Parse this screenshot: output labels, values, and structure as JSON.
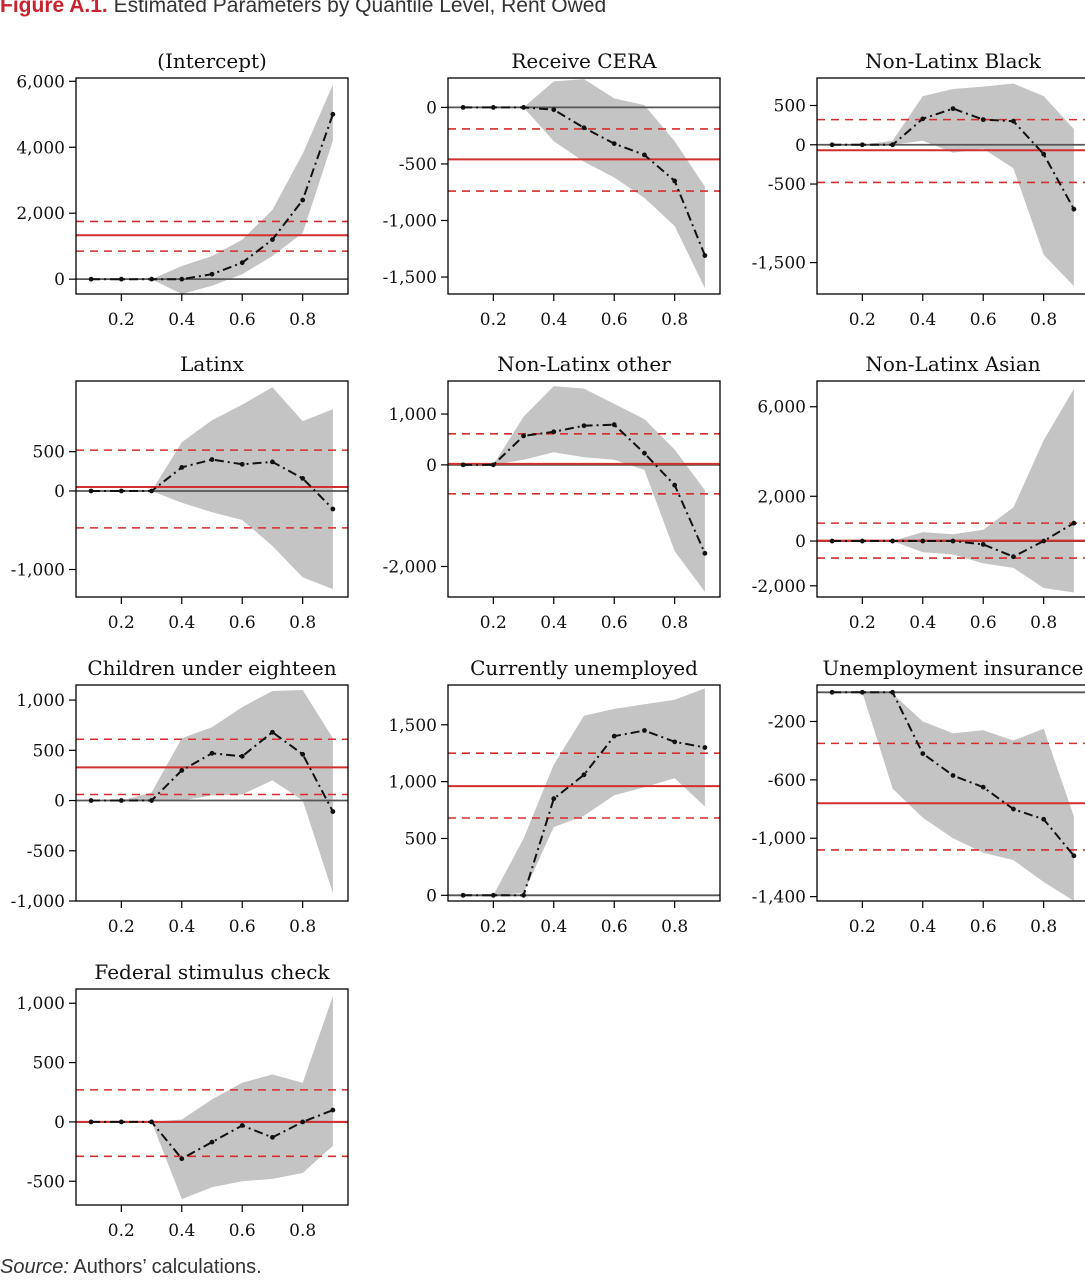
{
  "figure": {
    "label": "Figure A.1.",
    "title": "Estimated Parameters by Quantile Level, Rent Owed"
  },
  "source": {
    "label": "Source:",
    "text": " Authors’ calculations."
  },
  "colors": {
    "band": "#c4c4c4",
    "line": "#111111",
    "ols": "#d32f2f",
    "zero": "#555555",
    "frame": "#000000"
  },
  "chart_data": [
    {
      "type": "line",
      "title": "(Intercept)",
      "x": [
        0.1,
        0.2,
        0.3,
        0.4,
        0.5,
        0.6,
        0.7,
        0.8,
        0.9
      ],
      "ylim": [
        -450,
        6100
      ],
      "yticks": [
        0,
        2000,
        4000,
        6000
      ],
      "ytick_labels": [
        "0",
        "2,000",
        "4,000",
        "6,000"
      ],
      "xticks": [
        0.2,
        0.4,
        0.6,
        0.8
      ],
      "xtick_labels": [
        "0.2",
        "0.4",
        "0.6",
        "0.8"
      ],
      "series": [
        {
          "values": [
            0,
            0,
            0,
            0,
            150,
            500,
            1200,
            2400,
            5000
          ]
        }
      ],
      "band_upper": [
        0,
        0,
        0,
        400,
        700,
        1200,
        2100,
        3800,
        5900
      ],
      "band_lower": [
        0,
        0,
        0,
        -450,
        -200,
        150,
        700,
        1400,
        4200
      ],
      "ols_estimate": 1330,
      "ols_ci": [
        850,
        1750
      ]
    },
    {
      "type": "line",
      "title": "Receive CERA",
      "x": [
        0.1,
        0.2,
        0.3,
        0.4,
        0.5,
        0.6,
        0.7,
        0.8,
        0.9
      ],
      "ylim": [
        -1650,
        260
      ],
      "yticks": [
        0,
        -500,
        -1000,
        -1500
      ],
      "ytick_labels": [
        "0",
        "-500",
        "-1,000",
        "-1,500"
      ],
      "xticks": [
        0.2,
        0.4,
        0.6,
        0.8
      ],
      "xtick_labels": [
        "0.2",
        "0.4",
        "0.6",
        "0.8"
      ],
      "series": [
        {
          "values": [
            0,
            0,
            0,
            -20,
            -180,
            -320,
            -420,
            -650,
            -1310
          ]
        }
      ],
      "band_upper": [
        0,
        0,
        0,
        230,
        250,
        80,
        20,
        -300,
        -700
      ],
      "band_lower": [
        0,
        0,
        0,
        -300,
        -480,
        -620,
        -800,
        -1050,
        -1600
      ],
      "ols_estimate": -460,
      "ols_ci": [
        -190,
        -740
      ]
    },
    {
      "type": "line",
      "title": "Non-Latinx Black",
      "x": [
        0.1,
        0.2,
        0.3,
        0.4,
        0.5,
        0.6,
        0.7,
        0.8,
        0.9
      ],
      "ylim": [
        -1900,
        850
      ],
      "yticks": [
        500,
        0,
        -500,
        -1500
      ],
      "ytick_labels": [
        "500",
        "0",
        "-500",
        "-1,500"
      ],
      "xticks": [
        0.2,
        0.4,
        0.6,
        0.8
      ],
      "xtick_labels": [
        "0.2",
        "0.4",
        "0.6",
        "0.8"
      ],
      "series": [
        {
          "values": [
            0,
            0,
            0,
            330,
            460,
            320,
            300,
            -120,
            -820
          ]
        }
      ],
      "band_upper": [
        0,
        0,
        50,
        620,
        710,
        740,
        780,
        620,
        200
      ],
      "band_lower": [
        0,
        0,
        0,
        50,
        -100,
        -50,
        -300,
        -1400,
        -1800
      ],
      "ols_estimate": -70,
      "ols_ci": [
        320,
        -480
      ]
    },
    {
      "type": "line",
      "title": "Latinx",
      "x": [
        0.1,
        0.2,
        0.3,
        0.4,
        0.5,
        0.6,
        0.7,
        0.8,
        0.9
      ],
      "ylim": [
        -1350,
        1400
      ],
      "yticks": [
        500,
        0,
        -1000
      ],
      "ytick_labels": [
        "500",
        "0",
        "-1,000"
      ],
      "xticks": [
        0.2,
        0.4,
        0.6,
        0.8
      ],
      "xtick_labels": [
        "0.2",
        "0.4",
        "0.6",
        "0.8"
      ],
      "series": [
        {
          "values": [
            0,
            0,
            0,
            300,
            400,
            340,
            370,
            160,
            -230
          ]
        }
      ],
      "band_upper": [
        0,
        0,
        0,
        620,
        900,
        1100,
        1320,
        890,
        1040
      ],
      "band_lower": [
        0,
        0,
        0,
        -150,
        -270,
        -370,
        -700,
        -1100,
        -1250
      ],
      "ols_estimate": 50,
      "ols_ci": [
        520,
        -470
      ]
    },
    {
      "type": "line",
      "title": "Non-Latinx other",
      "x": [
        0.1,
        0.2,
        0.3,
        0.4,
        0.5,
        0.6,
        0.7,
        0.8,
        0.9
      ],
      "ylim": [
        -2600,
        1650
      ],
      "yticks": [
        1000,
        0,
        -2000
      ],
      "ytick_labels": [
        "1,000",
        "0",
        "-2,000"
      ],
      "xticks": [
        0.2,
        0.4,
        0.6,
        0.8
      ],
      "xtick_labels": [
        "0.2",
        "0.4",
        "0.6",
        "0.8"
      ],
      "series": [
        {
          "values": [
            0,
            0,
            570,
            650,
            770,
            790,
            230,
            -400,
            -1740
          ]
        }
      ],
      "band_upper": [
        0,
        0,
        950,
        1550,
        1500,
        1200,
        900,
        300,
        -500
      ],
      "band_lower": [
        0,
        0,
        100,
        250,
        150,
        100,
        -100,
        -1700,
        -2500
      ],
      "ols_estimate": 20,
      "ols_ci": [
        610,
        -570
      ]
    },
    {
      "type": "line",
      "title": "Non-Latinx Asian",
      "x": [
        0.1,
        0.2,
        0.3,
        0.4,
        0.5,
        0.6,
        0.7,
        0.8,
        0.9
      ],
      "ylim": [
        -2500,
        7150
      ],
      "yticks": [
        6000,
        2000,
        0,
        -2000
      ],
      "ytick_labels": [
        "6,000",
        "2,000",
        "0",
        "-2,000"
      ],
      "xticks": [
        0.2,
        0.4,
        0.6,
        0.8
      ],
      "xtick_labels": [
        "0.2",
        "0.4",
        "0.6",
        "0.8"
      ],
      "series": [
        {
          "values": [
            0,
            0,
            0,
            0,
            0,
            -150,
            -700,
            0,
            800
          ]
        }
      ],
      "band_upper": [
        0,
        0,
        0,
        400,
        300,
        500,
        1500,
        4500,
        6800
      ],
      "band_lower": [
        0,
        0,
        0,
        -500,
        -600,
        -1000,
        -1200,
        -2100,
        -2300
      ],
      "ols_estimate": 20,
      "ols_ci": [
        800,
        -760
      ]
    },
    {
      "type": "line",
      "title": "Children under eighteen",
      "x": [
        0.1,
        0.2,
        0.3,
        0.4,
        0.5,
        0.6,
        0.7,
        0.8,
        0.9
      ],
      "ylim": [
        -1000,
        1150
      ],
      "yticks": [
        1000,
        500,
        0,
        -500,
        -1000
      ],
      "ytick_labels": [
        "1,000",
        "500",
        "0",
        "-500",
        "-1,000"
      ],
      "xticks": [
        0.2,
        0.4,
        0.6,
        0.8
      ],
      "xtick_labels": [
        "0.2",
        "0.4",
        "0.6",
        "0.8"
      ],
      "series": [
        {
          "values": [
            0,
            0,
            0,
            300,
            470,
            440,
            680,
            460,
            -110
          ]
        }
      ],
      "band_upper": [
        0,
        0,
        80,
        620,
        730,
        930,
        1090,
        1100,
        620
      ],
      "band_lower": [
        0,
        0,
        0,
        0,
        50,
        60,
        200,
        0,
        -920
      ],
      "ols_estimate": 330,
      "ols_ci": [
        610,
        60
      ]
    },
    {
      "type": "line",
      "title": "Currently unemployed",
      "x": [
        0.1,
        0.2,
        0.3,
        0.4,
        0.5,
        0.6,
        0.7,
        0.8,
        0.9
      ],
      "ylim": [
        -50,
        1850
      ],
      "yticks": [
        1500,
        1000,
        500,
        0
      ],
      "ytick_labels": [
        "1,500",
        "1,000",
        "500",
        "0"
      ],
      "xticks": [
        0.2,
        0.4,
        0.6,
        0.8
      ],
      "xtick_labels": [
        "0.2",
        "0.4",
        "0.6",
        "0.8"
      ],
      "series": [
        {
          "values": [
            0,
            0,
            0,
            850,
            1060,
            1400,
            1450,
            1350,
            1300
          ]
        }
      ],
      "band_upper": [
        0,
        0,
        500,
        1150,
        1580,
        1640,
        1680,
        1720,
        1820
      ],
      "band_lower": [
        0,
        0,
        20,
        600,
        700,
        880,
        950,
        1030,
        780
      ],
      "ols_estimate": 960,
      "ols_ci": [
        1250,
        680
      ]
    },
    {
      "type": "line",
      "title": "Unemployment insurance",
      "x": [
        0.1,
        0.2,
        0.3,
        0.4,
        0.5,
        0.6,
        0.7,
        0.8,
        0.9
      ],
      "ylim": [
        -1430,
        50
      ],
      "yticks": [
        -200,
        -600,
        -1000,
        -1400
      ],
      "ytick_labels": [
        "-200",
        "-600",
        "-1,000",
        "-1,400"
      ],
      "xticks": [
        0.2,
        0.4,
        0.6,
        0.8
      ],
      "xtick_labels": [
        "0.2",
        "0.4",
        "0.6",
        "0.8"
      ],
      "series": [
        {
          "values": [
            0,
            0,
            0,
            -420,
            -570,
            -650,
            -800,
            -870,
            -1120
          ]
        }
      ],
      "band_upper": [
        0,
        0,
        -10,
        -200,
        -280,
        -260,
        -330,
        -250,
        -850
      ],
      "band_lower": [
        0,
        0,
        -660,
        -860,
        -1000,
        -1100,
        -1150,
        -1300,
        -1430
      ],
      "ols_estimate": -760,
      "ols_ci": [
        -350,
        -1080
      ]
    },
    {
      "type": "line",
      "title": "Federal stimulus check",
      "x": [
        0.1,
        0.2,
        0.3,
        0.4,
        0.5,
        0.6,
        0.7,
        0.8,
        0.9
      ],
      "ylim": [
        -700,
        1120
      ],
      "yticks": [
        1000,
        500,
        0,
        -500
      ],
      "ytick_labels": [
        "1,000",
        "500",
        "0",
        "-500"
      ],
      "xticks": [
        0.2,
        0.4,
        0.6,
        0.8
      ],
      "xtick_labels": [
        "0.2",
        "0.4",
        "0.6",
        "0.8"
      ],
      "series": [
        {
          "values": [
            0,
            0,
            0,
            -310,
            -170,
            -30,
            -130,
            0,
            100
          ]
        }
      ],
      "band_upper": [
        0,
        0,
        0,
        20,
        190,
        330,
        400,
        330,
        1060
      ],
      "band_lower": [
        0,
        0,
        0,
        -650,
        -550,
        -500,
        -480,
        -430,
        -200
      ],
      "ols_estimate": 0,
      "ols_ci": [
        270,
        -290
      ]
    }
  ]
}
